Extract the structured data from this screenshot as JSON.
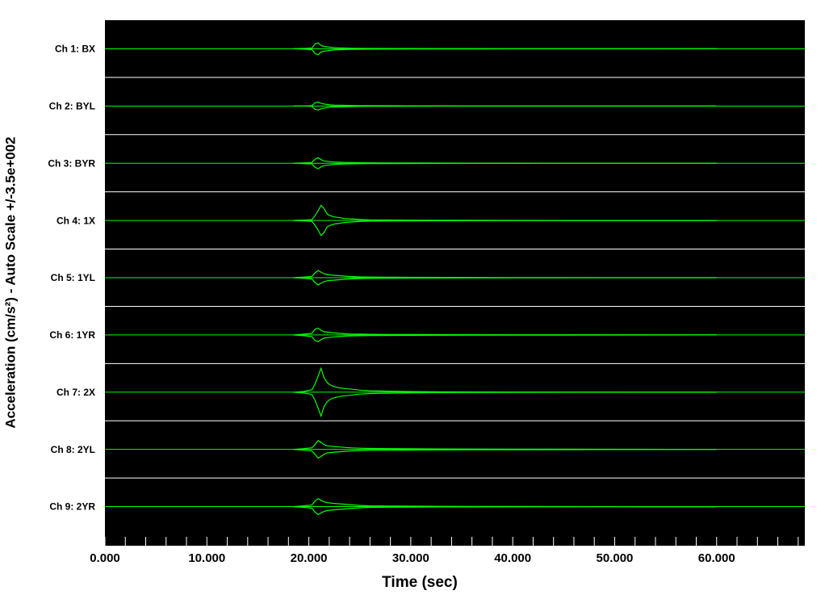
{
  "chart_data": {
    "type": "waveform",
    "x_label": "Time (sec)",
    "y_label": "Acceleration (cm/s²) - Auto Scale +/-3.5e+002",
    "xlim": [
      0,
      68.65
    ],
    "xticks": [
      {
        "value": 0,
        "label": "0.000"
      },
      {
        "value": 10,
        "label": "10.000"
      },
      {
        "value": 20,
        "label": "20.000"
      },
      {
        "value": 30,
        "label": "30.000"
      },
      {
        "value": 40,
        "label": "40.000"
      },
      {
        "value": 50,
        "label": "50.000"
      },
      {
        "value": 60,
        "label": "60.000"
      }
    ],
    "minor_xticks": [
      2,
      4,
      6,
      8,
      12,
      14,
      16,
      18,
      22,
      24,
      26,
      28,
      32,
      34,
      36,
      38,
      42,
      44,
      46,
      48,
      52,
      54,
      56,
      58,
      62,
      64,
      66,
      68
    ],
    "ylim": [
      -350,
      350
    ],
    "color": "#00ff00",
    "x": [
      18.5,
      19.5,
      20.3,
      20.6,
      20.9,
      21.2,
      21.5,
      21.8,
      22.1,
      22.5,
      23,
      23.5,
      24,
      25,
      26,
      28,
      30,
      33,
      36,
      40,
      45,
      52,
      60
    ],
    "series": [
      {
        "name": "Ch 1: BX",
        "values": [
          0,
          5,
          10,
          60,
          75,
          40,
          30,
          25,
          20,
          15,
          12,
          10,
          8,
          6,
          5,
          4,
          3,
          2,
          2,
          1,
          1,
          1,
          0
        ]
      },
      {
        "name": "Ch 2: BYL",
        "values": [
          0,
          0,
          5,
          40,
          50,
          35,
          25,
          20,
          15,
          12,
          10,
          8,
          7,
          5,
          4,
          3,
          2,
          1,
          0,
          0,
          0,
          0,
          0
        ]
      },
      {
        "name": "Ch 3: BYR",
        "values": [
          0,
          5,
          10,
          50,
          70,
          45,
          30,
          25,
          20,
          15,
          12,
          10,
          8,
          6,
          5,
          4,
          3,
          2,
          1,
          1,
          0,
          0,
          0
        ]
      },
      {
        "name": "Ch 4: 1X",
        "values": [
          0,
          5,
          10,
          60,
          120,
          190,
          150,
          80,
          60,
          45,
          35,
          25,
          20,
          12,
          8,
          6,
          4,
          3,
          2,
          1,
          0,
          0,
          0
        ]
      },
      {
        "name": "Ch 5: 1YL",
        "values": [
          0,
          8,
          15,
          60,
          90,
          70,
          50,
          40,
          35,
          30,
          25,
          20,
          15,
          10,
          8,
          6,
          5,
          4,
          3,
          2,
          1,
          0,
          0
        ]
      },
      {
        "name": "Ch 6: 1YR",
        "values": [
          0,
          10,
          20,
          70,
          85,
          60,
          40,
          35,
          30,
          25,
          20,
          15,
          12,
          10,
          8,
          6,
          5,
          4,
          3,
          2,
          2,
          1,
          0
        ]
      },
      {
        "name": "Ch 7: 2X",
        "values": [
          0,
          10,
          30,
          100,
          200,
          300,
          180,
          120,
          90,
          70,
          55,
          45,
          40,
          25,
          18,
          12,
          8,
          5,
          3,
          2,
          1,
          0,
          0
        ]
      },
      {
        "name": "Ch 8: 2YL",
        "values": [
          0,
          10,
          20,
          60,
          110,
          90,
          60,
          45,
          40,
          35,
          30,
          25,
          20,
          15,
          12,
          10,
          8,
          6,
          5,
          4,
          3,
          2,
          0
        ]
      },
      {
        "name": "Ch 9: 2YR",
        "values": [
          0,
          10,
          20,
          70,
          100,
          80,
          60,
          50,
          45,
          40,
          35,
          30,
          25,
          15,
          10,
          8,
          6,
          4,
          3,
          2,
          1,
          0,
          0
        ]
      }
    ]
  }
}
